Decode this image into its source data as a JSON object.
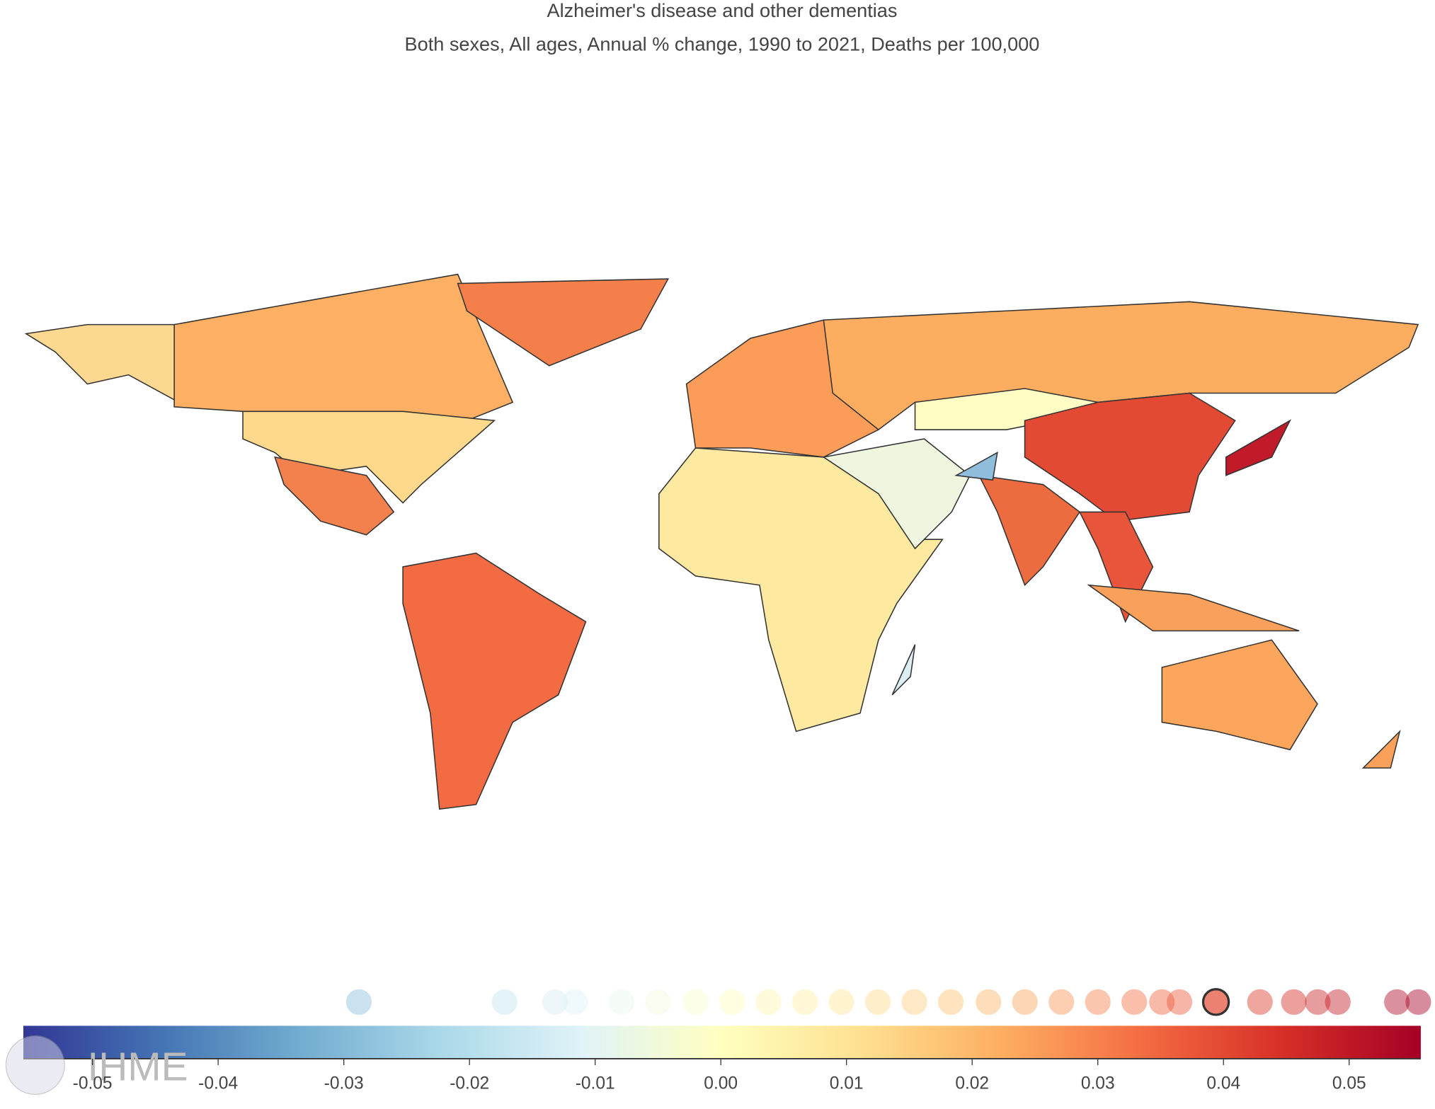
{
  "chart_data": {
    "type": "choropleth",
    "title": "Alzheimer's disease and other dementias",
    "subtitle": "Both sexes, All ages, Annual % change, 1990 to 2021, Deaths per 100,000",
    "colorscale": [
      "#313695",
      "#4575b4",
      "#74add1",
      "#abd9e9",
      "#e0f3f8",
      "#ffffbf",
      "#fee090",
      "#fdae61",
      "#f46d43",
      "#d73027",
      "#a50026"
    ],
    "xlim": [
      -0.0555,
      0.0557
    ],
    "xticks": [
      -0.05,
      -0.04,
      -0.03,
      -0.02,
      -0.01,
      {
        "value": 0,
        "label": "0.00"
      },
      0.01,
      0.02,
      0.03,
      0.04,
      0.05
    ],
    "values": [
      -0.0288,
      -0.0172,
      -0.0132,
      -0.0116,
      -0.0079,
      -0.005,
      -0.002,
      0.0009,
      0.0038,
      0.0067,
      0.0096,
      0.0125,
      0.0154,
      0.0183,
      0.0213,
      0.0242,
      0.0271,
      0.03,
      0.0329,
      0.0351,
      0.0365,
      0.0394,
      0.0429,
      0.0456,
      0.0475,
      0.0491,
      0.0538,
      0.0555
    ],
    "highlight_index": 21,
    "logo": "IHME"
  }
}
